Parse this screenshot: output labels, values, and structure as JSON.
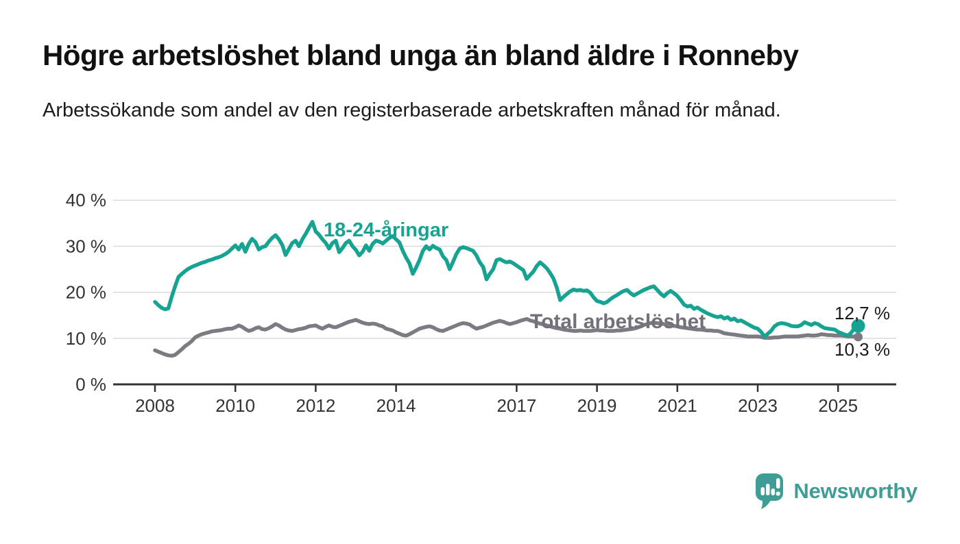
{
  "title": "Högre arbetslöshet bland unga än bland äldre i Ronneby",
  "subtitle": "Arbetssökande som andel av den registerbaserade arbetskraften månad för månad.",
  "brand": {
    "name": "Newsworthy",
    "logo_icon": "speech-bubble-bar-chart-icon",
    "color": "#3F9D96"
  },
  "chart_data": {
    "type": "line",
    "unit": "%",
    "grid": "horizontal",
    "legend_position": "inline-labels",
    "x": {
      "start_year": 2008,
      "points_per_year": 12,
      "end": "2025-07",
      "ticks": [
        {
          "value": 2008,
          "label": "2008"
        },
        {
          "value": 2010,
          "label": "2010"
        },
        {
          "value": 2012,
          "label": "2012"
        },
        {
          "value": 2014,
          "label": "2014"
        },
        {
          "value": 2017,
          "label": "2017"
        },
        {
          "value": 2019,
          "label": "2019"
        },
        {
          "value": 2021,
          "label": "2021"
        },
        {
          "value": 2023,
          "label": "2023"
        },
        {
          "value": 2025,
          "label": "2025"
        }
      ]
    },
    "y": {
      "lim": [
        0,
        40
      ],
      "ticks": [
        {
          "value": 40,
          "label": "40 %"
        },
        {
          "value": 30,
          "label": "30 %"
        },
        {
          "value": 20,
          "label": "20 %"
        },
        {
          "value": 10,
          "label": "10 %"
        },
        {
          "value": 0,
          "label": "0 %"
        }
      ]
    },
    "series": [
      {
        "name": "18-24-åringar",
        "color": "#17A392",
        "label_color": "#17A392",
        "end_label": "12,7 %",
        "end_value": 12.7,
        "values": [
          17.9,
          17.2,
          16.6,
          16.3,
          16.5,
          19.0,
          21.3,
          23.3,
          24.0,
          24.6,
          25.1,
          25.5,
          25.8,
          26.1,
          26.4,
          26.6,
          26.9,
          27.1,
          27.4,
          27.6,
          27.9,
          28.3,
          28.8,
          29.5,
          30.2,
          29.3,
          30.5,
          28.8,
          30.5,
          31.6,
          30.9,
          29.3,
          29.8,
          30.0,
          31.0,
          31.8,
          32.4,
          31.5,
          30.3,
          28.1,
          29.4,
          30.7,
          31.2,
          30.0,
          31.5,
          32.7,
          34.0,
          35.3,
          33.2,
          32.5,
          31.5,
          30.7,
          29.5,
          30.7,
          31.2,
          28.7,
          29.6,
          30.7,
          31.2,
          30.0,
          29.2,
          28.0,
          28.8,
          30.2,
          29.0,
          30.5,
          31.2,
          31.0,
          30.6,
          31.2,
          31.8,
          32.2,
          31.5,
          30.8,
          29.0,
          27.5,
          26.3,
          24.0,
          25.4,
          27.0,
          29.0,
          30.0,
          29.3,
          30.1,
          29.6,
          29.3,
          27.8,
          27.0,
          25.0,
          26.6,
          28.3,
          29.5,
          29.8,
          29.6,
          29.3,
          29.0,
          28.0,
          26.5,
          25.5,
          22.8,
          24.0,
          25.0,
          27.0,
          27.2,
          26.8,
          26.5,
          26.7,
          26.3,
          25.8,
          25.3,
          24.8,
          22.9,
          23.7,
          24.5,
          25.7,
          26.5,
          25.9,
          25.2,
          24.2,
          23.0,
          21.0,
          18.3,
          19.0,
          19.6,
          20.2,
          20.6,
          20.4,
          20.5,
          20.3,
          20.4,
          19.9,
          18.9,
          18.1,
          17.9,
          17.6,
          17.9,
          18.5,
          19.0,
          19.4,
          19.9,
          20.3,
          20.5,
          19.8,
          19.3,
          19.7,
          20.1,
          20.5,
          20.8,
          21.1,
          21.3,
          20.5,
          19.7,
          19.1,
          19.8,
          20.3,
          19.8,
          19.2,
          18.3,
          17.3,
          16.9,
          17.1,
          16.4,
          16.7,
          16.2,
          15.8,
          15.4,
          15.1,
          14.8,
          14.6,
          14.8,
          14.3,
          14.6,
          14.0,
          14.3,
          13.7,
          13.9,
          13.5,
          13.1,
          12.7,
          12.3,
          12.1,
          11.4,
          10.4,
          11.0,
          11.6,
          12.6,
          13.1,
          13.3,
          13.2,
          13.0,
          12.7,
          12.6,
          12.6,
          12.9,
          13.5,
          13.2,
          12.9,
          13.3,
          13.1,
          12.6,
          12.2,
          12.1,
          12.0,
          11.9,
          11.4,
          11.1,
          10.8,
          10.6,
          11.3,
          12.3,
          12.7
        ]
      },
      {
        "name": "Total arbetslöshet",
        "color": "#7D7A82",
        "label_color": "#73707A",
        "end_label": "10,3 %",
        "end_value": 10.3,
        "values": [
          7.4,
          7.1,
          6.8,
          6.5,
          6.3,
          6.2,
          6.4,
          7.0,
          7.6,
          8.3,
          8.8,
          9.4,
          10.2,
          10.6,
          10.9,
          11.1,
          11.3,
          11.5,
          11.6,
          11.7,
          11.8,
          12.0,
          12.1,
          12.1,
          12.4,
          12.8,
          12.5,
          12.0,
          11.6,
          11.8,
          12.2,
          12.4,
          12.0,
          11.9,
          12.2,
          12.6,
          13.1,
          12.8,
          12.3,
          11.9,
          11.7,
          11.6,
          11.8,
          12.0,
          12.1,
          12.3,
          12.6,
          12.7,
          12.8,
          12.4,
          12.1,
          12.5,
          12.8,
          12.5,
          12.4,
          12.7,
          13.0,
          13.3,
          13.6,
          13.8,
          14.0,
          13.7,
          13.4,
          13.2,
          13.1,
          13.2,
          13.1,
          12.8,
          12.6,
          12.1,
          11.9,
          11.7,
          11.3,
          11.0,
          10.7,
          10.6,
          10.9,
          11.3,
          11.7,
          12.1,
          12.3,
          12.5,
          12.6,
          12.4,
          12.0,
          11.7,
          11.6,
          11.9,
          12.2,
          12.5,
          12.8,
          13.1,
          13.3,
          13.2,
          13.0,
          12.5,
          12.1,
          12.3,
          12.5,
          12.8,
          13.1,
          13.4,
          13.6,
          13.8,
          13.6,
          13.3,
          13.1,
          13.3,
          13.5,
          13.8,
          14.0,
          14.2,
          13.9,
          13.7,
          13.4,
          13.2,
          13.0,
          12.8,
          12.6,
          12.4,
          12.2,
          12.1,
          11.9,
          11.8,
          11.7,
          11.6,
          11.6,
          11.7,
          11.6,
          11.6,
          11.6,
          11.7,
          11.8,
          11.7,
          11.7,
          11.6,
          11.6,
          11.6,
          11.7,
          11.7,
          11.8,
          11.9,
          12.0,
          12.1,
          12.3,
          12.6,
          12.9,
          13.1,
          13.3,
          13.4,
          13.3,
          13.2,
          13.1,
          12.9,
          12.8,
          12.7,
          12.6,
          12.4,
          12.3,
          12.2,
          12.1,
          12.0,
          11.9,
          11.9,
          11.8,
          11.7,
          11.7,
          11.6,
          11.6,
          11.4,
          11.1,
          11.0,
          10.9,
          10.8,
          10.7,
          10.6,
          10.5,
          10.4,
          10.4,
          10.4,
          10.4,
          10.3,
          10.1,
          10.1,
          10.1,
          10.2,
          10.2,
          10.3,
          10.4,
          10.4,
          10.4,
          10.4,
          10.4,
          10.5,
          10.6,
          10.7,
          10.6,
          10.6,
          10.7,
          10.9,
          10.8,
          10.7,
          10.7,
          10.6,
          10.6,
          10.6,
          10.5,
          10.4,
          10.4,
          10.4,
          10.3
        ]
      }
    ]
  }
}
